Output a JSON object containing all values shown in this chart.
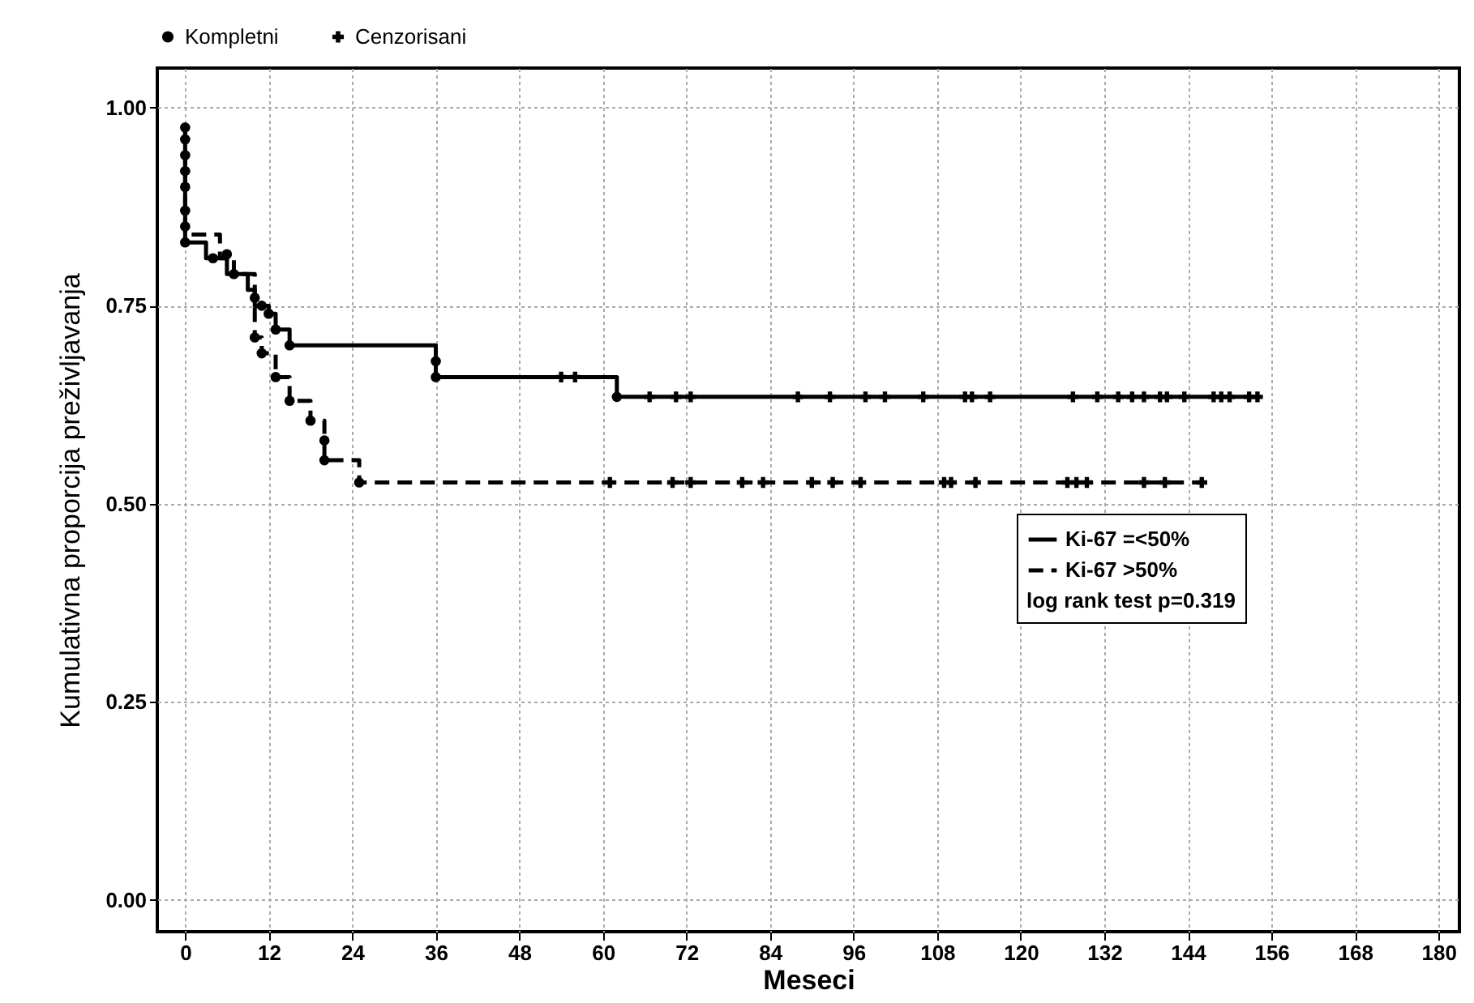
{
  "chart_data": {
    "type": "step",
    "xlabel": "Meseci",
    "ylabel": "Kumulativna proporcija preživljavanja",
    "annotations": [
      "log rank test p=0.319"
    ],
    "xlim": [
      -4,
      183
    ],
    "xticks": [
      0,
      12,
      24,
      36,
      48,
      60,
      72,
      84,
      96,
      108,
      120,
      132,
      144,
      156,
      168,
      180
    ],
    "ylim": [
      -0.04,
      1.05
    ],
    "yticks": [
      {
        "value": 0,
        "label": "0.00"
      },
      {
        "value": 0.25,
        "label": "0.25"
      },
      {
        "value": 0.5,
        "label": "0.50"
      },
      {
        "value": 0.75,
        "label": "0.75"
      },
      {
        "value": 1,
        "label": "1.00"
      }
    ],
    "grid": true,
    "legend": "top",
    "series": [
      {
        "name": "Ki-67 =<50%",
        "line_style": "solid",
        "color": "#000000",
        "x": [
          0,
          0,
          3,
          6,
          9,
          10,
          12,
          13,
          15,
          36,
          62,
          154
        ],
        "values": [
          0.975,
          0.83,
          0.81,
          0.79,
          0.77,
          0.75,
          0.74,
          0.72,
          0.7,
          0.66,
          0.635,
          0.635
        ]
      },
      {
        "name": "Ki-67 >50%",
        "line_style": "dashed",
        "color": "#000000",
        "x": [
          0,
          0,
          5,
          7,
          10,
          10,
          11,
          13,
          15,
          18,
          20,
          20,
          25,
          147
        ],
        "values": [
          0.975,
          0.84,
          0.81,
          0.79,
          0.76,
          0.71,
          0.69,
          0.66,
          0.63,
          0.605,
          0.58,
          0.555,
          0.527,
          0.527
        ]
      },
      {
        "name": "Kompletni",
        "type": "scatter",
        "marker": "circle",
        "color": "#000000",
        "x": [
          0,
          0,
          0,
          0,
          0,
          0,
          0,
          0,
          4,
          6,
          7,
          10,
          11,
          10,
          11,
          12,
          13,
          13,
          15,
          15,
          18,
          20,
          20,
          25,
          36,
          36,
          62
        ],
        "values": [
          0.975,
          0.96,
          0.94,
          0.92,
          0.9,
          0.87,
          0.85,
          0.83,
          0.81,
          0.815,
          0.79,
          0.76,
          0.75,
          0.71,
          0.69,
          0.74,
          0.72,
          0.66,
          0.63,
          0.7,
          0.605,
          0.58,
          0.555,
          0.527,
          0.68,
          0.66,
          0.635
        ]
      },
      {
        "name": "Cenzorisani",
        "type": "scatter",
        "marker": "cross",
        "color": "#000000",
        "x": [
          54,
          56,
          66.7,
          70.5,
          72.6,
          88,
          92.6,
          97.7,
          100.5,
          106,
          112,
          113,
          115.6,
          127.5,
          131,
          134,
          136,
          137.7,
          140,
          141,
          143.5,
          147.7,
          148.8,
          150,
          152.8,
          154,
          61,
          70,
          72.6,
          80,
          83,
          90,
          93,
          97,
          109,
          110,
          113.5,
          126.7,
          128,
          129.5,
          137.7,
          140.7,
          146
        ],
        "values": [
          0.66,
          0.66,
          0.635,
          0.635,
          0.635,
          0.635,
          0.635,
          0.635,
          0.635,
          0.635,
          0.635,
          0.635,
          0.635,
          0.635,
          0.635,
          0.635,
          0.635,
          0.635,
          0.635,
          0.635,
          0.635,
          0.635,
          0.635,
          0.635,
          0.635,
          0.635,
          0.527,
          0.527,
          0.527,
          0.527,
          0.527,
          0.527,
          0.527,
          0.527,
          0.527,
          0.527,
          0.527,
          0.527,
          0.527,
          0.527,
          0.527,
          0.527,
          0.527
        ]
      }
    ]
  }
}
